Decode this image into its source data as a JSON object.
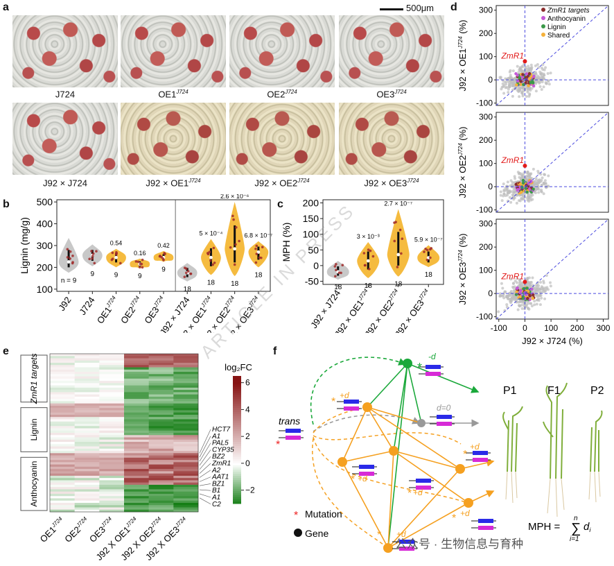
{
  "panel_letters": {
    "a": "a",
    "b": "b",
    "c": "c",
    "d": "d",
    "e": "e",
    "f": "f"
  },
  "panel_a": {
    "scale_bar": "500μm",
    "row1": [
      {
        "base": "J724",
        "sup": ""
      },
      {
        "base": "OE1",
        "sup": "J724"
      },
      {
        "base": "OE2",
        "sup": "J724"
      },
      {
        "base": "OE3",
        "sup": "J724"
      }
    ],
    "row2": [
      {
        "base": "J92 × J724",
        "sup": ""
      },
      {
        "base": "J92 × OE1",
        "sup": "J724"
      },
      {
        "base": "J92 × OE2",
        "sup": "J724"
      },
      {
        "base": "J92 × OE3",
        "sup": "J724"
      }
    ]
  },
  "chart_data": [
    {
      "id": "b",
      "type": "violin",
      "ylabel": "Lignin (mg/g)",
      "ylim": [
        90,
        510
      ],
      "yticks": [
        100,
        200,
        300,
        400,
        500
      ],
      "categories": [
        "J92",
        "J724",
        "OE1J724",
        "OE2J724",
        "OE3J724",
        "J92 × J724",
        "J92 × OE1J724",
        "J92 × OE2J724",
        "J92 × OE3J724"
      ],
      "category_labels": [
        {
          "base": "J92",
          "sup": ""
        },
        {
          "base": "J724",
          "sup": ""
        },
        {
          "base": "OE1",
          "sup": "J724"
        },
        {
          "base": "OE2",
          "sup": "J724"
        },
        {
          "base": "OE3",
          "sup": "J724"
        },
        {
          "base": "J92 × J724",
          "sup": ""
        },
        {
          "base": "J92 × OE1",
          "sup": "J724"
        },
        {
          "base": "J92 × OE2",
          "sup": "J724"
        },
        {
          "base": "J92 × OE3",
          "sup": "J724"
        }
      ],
      "medians": [
        225,
        255,
        245,
        215,
        245,
        175,
        245,
        285,
        270
      ],
      "mins": [
        175,
        205,
        200,
        195,
        225,
        135,
        165,
        160,
        200
      ],
      "maxs": [
        335,
        305,
        285,
        240,
        275,
        220,
        330,
        500,
        320
      ],
      "n_labels": [
        "n = 9",
        "9",
        "9",
        "9",
        "9",
        "18",
        "18",
        "18",
        "18"
      ],
      "p_values": [
        "",
        "",
        "0.54",
        "0.16",
        "0.42",
        "",
        "5 × 10⁻⁴",
        "2.6 × 10⁻⁶",
        "6.8 × 10⁻⁷"
      ],
      "colors": {
        "parent": "#c8c8c8",
        "transgenic": "#f5bb3f",
        "dot": "#a02a2a"
      }
    },
    {
      "id": "c",
      "type": "violin",
      "ylabel": "MPH (%)",
      "ylim": [
        -60,
        210
      ],
      "yticks": [
        -50,
        0,
        50,
        100,
        150,
        200
      ],
      "categories": [
        "J92 × J724",
        "J92 × OE1J724",
        "J92 × OE2J724",
        "J92 × OE3J724"
      ],
      "category_labels": [
        {
          "base": "J92 × J724",
          "sup": ""
        },
        {
          "base": "J92 × OE1",
          "sup": "J724"
        },
        {
          "base": "J92 × OE2",
          "sup": "J724"
        },
        {
          "base": "J92 × OE3",
          "sup": "J724"
        }
      ],
      "medians": [
        -20,
        15,
        35,
        25
      ],
      "mins": [
        -45,
        -40,
        -35,
        -5
      ],
      "maxs": [
        15,
        75,
        180,
        65
      ],
      "n_labels": [
        "18",
        "18",
        "18",
        "18"
      ],
      "p_values": [
        "",
        "3 × 10⁻³",
        "2.7 × 10⁻⁷",
        "5.9 × 10⁻⁷"
      ]
    },
    {
      "id": "d",
      "type": "scatter",
      "xlabel": "J92 × J724 (%)",
      "ylabels": [
        {
          "base": "J92 × OE1",
          "sup": "J724",
          "unit": " (%)"
        },
        {
          "base": "J92 × OE2",
          "sup": "J724",
          "unit": " (%)"
        },
        {
          "base": "J92 × OE3",
          "sup": "J724",
          "unit": " (%)"
        }
      ],
      "xlim": [
        -110,
        320
      ],
      "ylim": [
        -110,
        320
      ],
      "ticks": [
        -100,
        0,
        100,
        200,
        300
      ],
      "legend": [
        {
          "label": "ZmR1 targets",
          "color": "#8b2e2e"
        },
        {
          "label": "Anthocyanin",
          "color": "#c45ad6"
        },
        {
          "label": "Lignin",
          "color": "#3c9a4a"
        },
        {
          "label": "Shared",
          "color": "#f5b13a"
        }
      ],
      "highlight": {
        "label": "ZmR1",
        "color": "#e21a1a",
        "points": [
          [
            0,
            80
          ],
          [
            0,
            90
          ],
          [
            0,
            50
          ]
        ]
      }
    },
    {
      "id": "e",
      "type": "heatmap",
      "colorbar_title": "log₂FC",
      "colorbar_ticks": [
        6,
        4,
        2,
        0,
        -2
      ],
      "clim": [
        -3,
        6
      ],
      "columns": [
        {
          "base": "OE1",
          "sup": "J724"
        },
        {
          "base": "OE2",
          "sup": "J724"
        },
        {
          "base": "OE3",
          "sup": "J724"
        },
        {
          "base": "J92 X OE1",
          "sup": "J724"
        },
        {
          "base": "J92 X OE2",
          "sup": "J724"
        },
        {
          "base": "J92 X OE3",
          "sup": "J724"
        }
      ],
      "groups": [
        "ZmR1 targets",
        "Lignin",
        "Anthocyanin"
      ],
      "gene_labels": [
        "HCT7",
        "A1",
        "PAL5",
        "CYP35",
        "BZ2",
        "ZmR1",
        "A2",
        "AAT1",
        "BZ1",
        "B1",
        "A1",
        "C2"
      ]
    }
  ],
  "panel_f": {
    "trans_label": "trans",
    "d_labels": [
      "-d",
      "d=0",
      "+d",
      "+d",
      "+d",
      "+d",
      "+d",
      "+d"
    ],
    "plant_labels": [
      "P1",
      "F1",
      "P2"
    ],
    "legend_mutation": "Mutation",
    "legend_gene": "Gene",
    "formula_left": "MPH = ",
    "formula_sum_top": "n",
    "formula_sum_bottom": "i=1",
    "formula_term": "d",
    "formula_sub": "i"
  },
  "watermark": "ARTICLE IN PRESS",
  "footer": "公众号 · 生物信息与育种"
}
